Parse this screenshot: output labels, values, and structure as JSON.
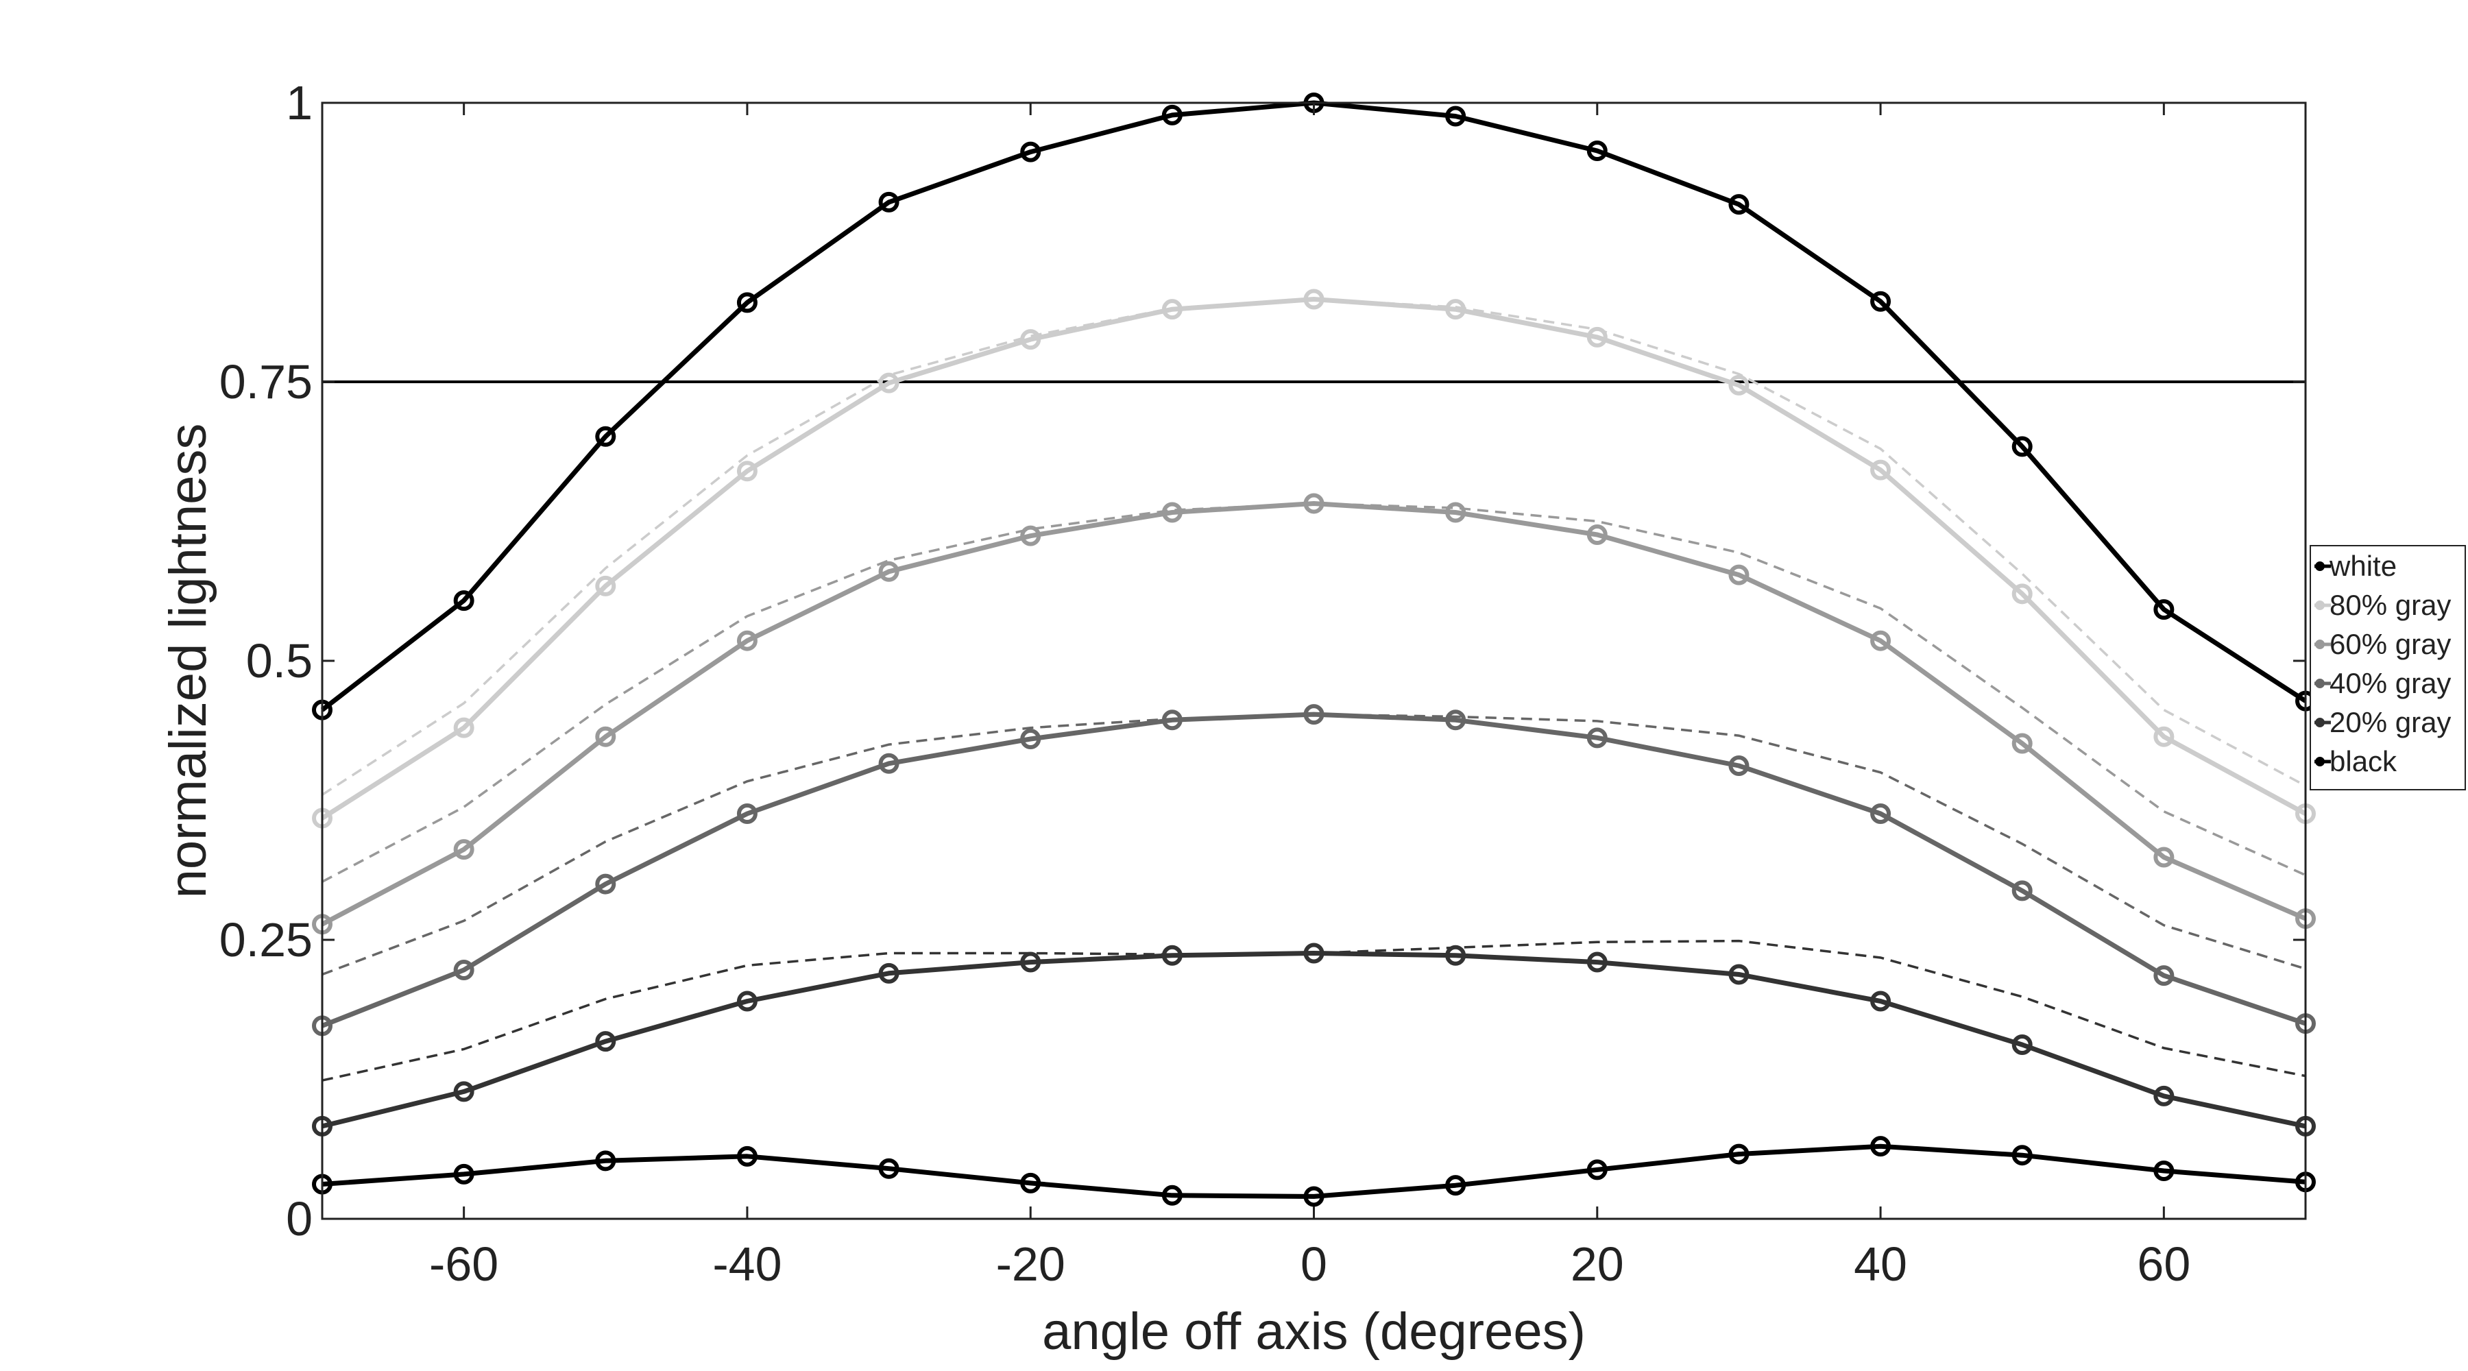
{
  "chart_data": {
    "type": "line",
    "xlabel": "angle off axis (degrees)",
    "ylabel": "normalized lightness",
    "xlim": [
      -70,
      70
    ],
    "ylim": [
      0,
      1
    ],
    "x_ticks": [
      -60,
      -40,
      -20,
      0,
      20,
      40,
      60
    ],
    "y_ticks": [
      0,
      0.25,
      0.5,
      0.75,
      1
    ],
    "y_tick_labels": [
      "0",
      "0.25",
      "0.5",
      "0.75",
      "1"
    ],
    "grid": false,
    "legend_position": "right",
    "reference_line": {
      "y": 0.75,
      "color": "#000000"
    },
    "x": [
      -70,
      -60,
      -50,
      -40,
      -30,
      -20,
      -10,
      0,
      10,
      20,
      30,
      40,
      50,
      60,
      70
    ],
    "series": [
      {
        "name": "white",
        "color": "#000000",
        "values": [
          0.456,
          0.554,
          0.701,
          0.821,
          0.911,
          0.956,
          0.989,
          1.0,
          0.988,
          0.957,
          0.909,
          0.822,
          0.692,
          0.546,
          0.464
        ]
      },
      {
        "name": "80% gray",
        "color": "#cccccc",
        "values": [
          0.359,
          0.44,
          0.567,
          0.67,
          0.749,
          0.788,
          0.815,
          0.824,
          0.815,
          0.79,
          0.747,
          0.671,
          0.56,
          0.432,
          0.363
        ]
      },
      {
        "name": "60% gray",
        "color": "#999999",
        "values": [
          0.264,
          0.331,
          0.432,
          0.518,
          0.58,
          0.612,
          0.633,
          0.641,
          0.633,
          0.613,
          0.577,
          0.518,
          0.426,
          0.324,
          0.269
        ]
      },
      {
        "name": "40% gray",
        "color": "#666666",
        "values": [
          0.173,
          0.223,
          0.3,
          0.363,
          0.408,
          0.43,
          0.447,
          0.452,
          0.447,
          0.431,
          0.406,
          0.363,
          0.294,
          0.218,
          0.175
        ]
      },
      {
        "name": "20% gray",
        "color": "#333333",
        "values": [
          0.083,
          0.114,
          0.159,
          0.195,
          0.22,
          0.23,
          0.236,
          0.238,
          0.236,
          0.23,
          0.219,
          0.195,
          0.156,
          0.11,
          0.083
        ]
      },
      {
        "name": "black",
        "color": "#000000",
        "values": [
          0.031,
          0.04,
          0.052,
          0.056,
          0.045,
          0.032,
          0.021,
          0.02,
          0.03,
          0.044,
          0.058,
          0.065,
          0.057,
          0.043,
          0.033
        ]
      }
    ],
    "reference_curves": [
      {
        "color": "#cccccc",
        "values": [
          0.38,
          0.462,
          0.583,
          0.684,
          0.756,
          0.791,
          0.816,
          0.824,
          0.817,
          0.797,
          0.757,
          0.69,
          0.578,
          0.456,
          0.388
        ]
      },
      {
        "color": "#999999",
        "values": [
          0.302,
          0.369,
          0.461,
          0.54,
          0.59,
          0.618,
          0.635,
          0.641,
          0.637,
          0.625,
          0.597,
          0.547,
          0.458,
          0.365,
          0.308
        ]
      },
      {
        "color": "#666666",
        "values": [
          0.219,
          0.267,
          0.338,
          0.392,
          0.425,
          0.44,
          0.448,
          0.452,
          0.45,
          0.446,
          0.433,
          0.4,
          0.336,
          0.263,
          0.224
        ]
      },
      {
        "color": "#333333",
        "values": [
          0.124,
          0.152,
          0.197,
          0.227,
          0.238,
          0.238,
          0.237,
          0.238,
          0.243,
          0.248,
          0.249,
          0.234,
          0.199,
          0.153,
          0.128
        ]
      }
    ]
  }
}
